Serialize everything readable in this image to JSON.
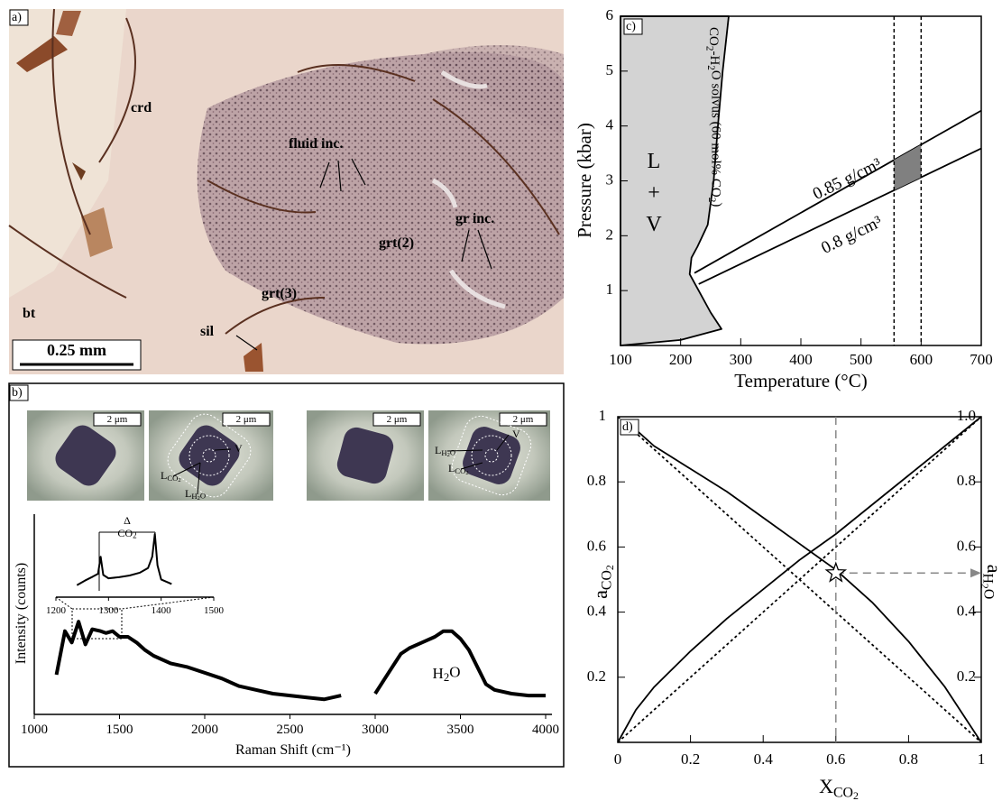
{
  "photo_panel": {
    "label": "a)",
    "annotations": [
      "crd",
      "fluid inc.",
      "grt(2)",
      "gr inc.",
      "grt(3)",
      "sil",
      "bt"
    ],
    "scale_bar": "0.25 mm"
  },
  "micrograph_panel": {
    "label": "b)",
    "images": [
      {
        "scale_bar": "2 μm"
      },
      {
        "scale_bar": "2 μm",
        "phases": [
          "V",
          {
            "main": "L",
            "sub": "CO2"
          },
          {
            "main": "L",
            "sub": "H2O"
          }
        ]
      },
      {
        "scale_bar": "2 μm"
      },
      {
        "scale_bar": "2 μm",
        "phases": [
          {
            "main": "L",
            "sub": "H2O"
          },
          {
            "main": "L",
            "sub": "CO2"
          },
          "V"
        ]
      }
    ]
  },
  "chart_data": [
    {
      "type": "line",
      "xlabel": "Raman Shift (cm⁻¹)",
      "ylabel": "Intensity (counts)",
      "annotations": [
        "H2O"
      ],
      "xlim": [
        1000,
        4000
      ],
      "ylim": [
        0,
        100
      ],
      "xticks": [
        1000,
        1500,
        2000,
        2500,
        3000,
        3500,
        4000
      ],
      "series": [
        {
          "color": "#000000",
          "x": [
            1130,
            1180,
            1220,
            1260,
            1300,
            1340,
            1390,
            1420,
            1460,
            1500,
            1550,
            1600,
            1650,
            1700,
            1800,
            1900,
            2000,
            2100,
            2200,
            2300,
            2400,
            2500,
            2600,
            2700,
            2800,
            2850,
            2890,
            2940,
            3000,
            3050,
            3100,
            3150,
            3200,
            3300,
            3350,
            3400,
            3450,
            3500,
            3550,
            3600,
            3650,
            3700,
            3800,
            3900,
            4000
          ],
          "values": [
            20,
            43,
            37,
            48,
            36,
            44,
            43,
            42,
            43,
            40,
            40,
            37,
            33,
            30,
            26,
            24,
            21,
            18,
            14,
            12,
            10,
            9,
            8,
            7,
            9,
            null,
            11,
            null,
            10,
            17,
            24,
            31,
            34,
            38,
            40,
            43,
            43,
            39,
            33,
            24,
            15,
            12,
            10,
            9,
            9
          ]
        }
      ]
    },
    {
      "type": "line",
      "annotations": [
        "Δ",
        "CO2"
      ],
      "xlim": [
        1200,
        1500
      ],
      "ylim": [
        0,
        100
      ],
      "xticks": [
        1200,
        1300,
        1400,
        1500
      ],
      "series": [
        {
          "color": "#000000",
          "x": [
            1240,
            1255,
            1270,
            1280,
            1285,
            1290,
            1300,
            1320,
            1340,
            1360,
            1375,
            1383,
            1388,
            1393,
            1400,
            1420
          ],
          "values": [
            10,
            18,
            25,
            30,
            60,
            28,
            22,
            24,
            27,
            32,
            40,
            60,
            100,
            45,
            20,
            12
          ]
        }
      ]
    },
    {
      "type": "line",
      "label": "c)",
      "xlabel": "Temperature (°C)",
      "ylabel": "Pressure (kbar)",
      "annotations": [
        "L",
        "+",
        "V",
        "CO2-H2O solvus (60 mol% CO2)",
        "0.85 g/cm³",
        "0.8 g/cm³"
      ],
      "xlim": [
        100,
        700
      ],
      "ylim": [
        0,
        6
      ],
      "xticks": [
        100,
        200,
        300,
        400,
        500,
        600,
        700
      ],
      "yticks": [
        1,
        2,
        3,
        4,
        5,
        6
      ],
      "vlines": [
        555,
        600
      ],
      "series": [
        {
          "color": "#000000",
          "fill": "#d3d3d3",
          "x": [
            100,
            200,
            268,
            250,
            230,
            215,
            218,
            228,
            245,
            255,
            262,
            270,
            280,
            100
          ],
          "values": [
            0,
            0.1,
            0.3,
            0.6,
            1.0,
            1.3,
            1.6,
            1.8,
            2.2,
            3,
            4,
            5,
            6,
            6
          ]
        },
        {
          "color": "#000000",
          "x": [
            223,
            700
          ],
          "values": [
            1.32,
            4.28
          ]
        },
        {
          "color": "#000000",
          "x": [
            230,
            700
          ],
          "values": [
            1.12,
            3.59
          ]
        }
      ],
      "shade_color": "#808080"
    },
    {
      "type": "line",
      "label": "d)",
      "xlabel": {
        "main": "X",
        "sub": "CO2"
      },
      "ylabel": {
        "main": "a",
        "sub": "CO2"
      },
      "y2label": {
        "main": "a",
        "sub": "H2O"
      },
      "xlim": [
        0,
        1
      ],
      "ylim": [
        0,
        1
      ],
      "y2lim": [
        0,
        1
      ],
      "xticks": [
        0,
        0.2,
        0.4,
        0.6,
        0.8,
        1
      ],
      "yticks": [
        0.2,
        0.4,
        0.6,
        0.8,
        1
      ],
      "y2ticks": [
        0.2,
        0.4,
        0.6,
        0.8,
        {
          "value": 1,
          "label": "1.0"
        }
      ],
      "vlines": [
        0.6
      ],
      "hlines": [
        0.52
      ],
      "point": {
        "x": 0.6,
        "y": 0.52
      },
      "series": [
        {
          "color": "#000000",
          "style": "solid",
          "x": [
            0,
            0.05,
            0.1,
            0.2,
            0.3,
            0.4,
            0.5,
            0.6,
            0.7,
            0.8,
            0.9,
            1
          ],
          "values": [
            0,
            0.1,
            0.17,
            0.28,
            0.38,
            0.47,
            0.56,
            0.64,
            0.73,
            0.82,
            0.91,
            1
          ]
        },
        {
          "color": "#000000",
          "style": "solid",
          "axis": "y2",
          "x": [
            0.05,
            0.1,
            0.2,
            0.3,
            0.4,
            0.5,
            0.6,
            0.7,
            0.8,
            0.9,
            1
          ],
          "values": [
            0.96,
            0.91,
            0.84,
            0.77,
            0.69,
            0.61,
            0.53,
            0.43,
            0.31,
            0.17,
            0
          ]
        },
        {
          "color": "#000000",
          "style": "dotted",
          "x": [
            0,
            1
          ],
          "values": [
            0,
            1
          ]
        },
        {
          "color": "#000000",
          "style": "dotted",
          "axis": "y2",
          "x": [
            0,
            1
          ],
          "values": [
            1,
            0
          ]
        }
      ]
    }
  ]
}
